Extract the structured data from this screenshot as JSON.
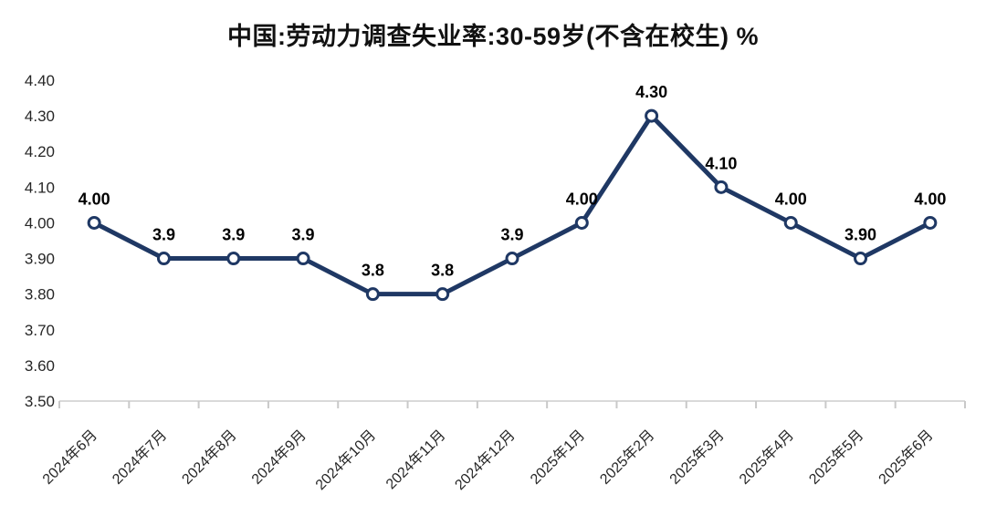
{
  "title": "中国:劳动力调查失业率:30-59岁(不含在校生) %",
  "colors": {
    "line": "#1F3864",
    "marker_fill": "#FFFFFF",
    "data_label": "#000000",
    "axis": "#D9D9D9",
    "tick": "#C9C9C9",
    "tick_label": "#262626",
    "background": "#FFFFFF"
  },
  "chart_data": {
    "type": "line",
    "title": "中国:劳动力调查失业率:30-59岁(不含在校生) %",
    "xlabel": "",
    "ylabel": "",
    "categories": [
      "2024年6月",
      "2024年7月",
      "2024年8月",
      "2024年9月",
      "2024年10月",
      "2024年11月",
      "2024年12月",
      "2025年1月",
      "2025年2月",
      "2025年3月",
      "2025年4月",
      "2025年5月",
      "2025年6月"
    ],
    "values": [
      4.0,
      3.9,
      3.9,
      3.9,
      3.8,
      3.8,
      3.9,
      4.0,
      4.3,
      4.1,
      4.0,
      3.9,
      4.0
    ],
    "point_labels": [
      "4.00",
      "3.9",
      "3.9",
      "3.9",
      "3.8",
      "3.8",
      "3.9",
      "4.00",
      "4.30",
      "4.10",
      "4.00",
      "3.90",
      "4.00"
    ],
    "ylim": [
      3.5,
      4.4
    ],
    "y_ticks": [
      "4.40",
      "4.30",
      "4.20",
      "4.10",
      "4.00",
      "3.90",
      "3.80",
      "3.70",
      "3.60",
      "3.50"
    ],
    "y_tick_step": 0.1,
    "grid": false,
    "legend_position": "none",
    "marker": "open-circle",
    "x_label_rotation_deg": 45
  }
}
